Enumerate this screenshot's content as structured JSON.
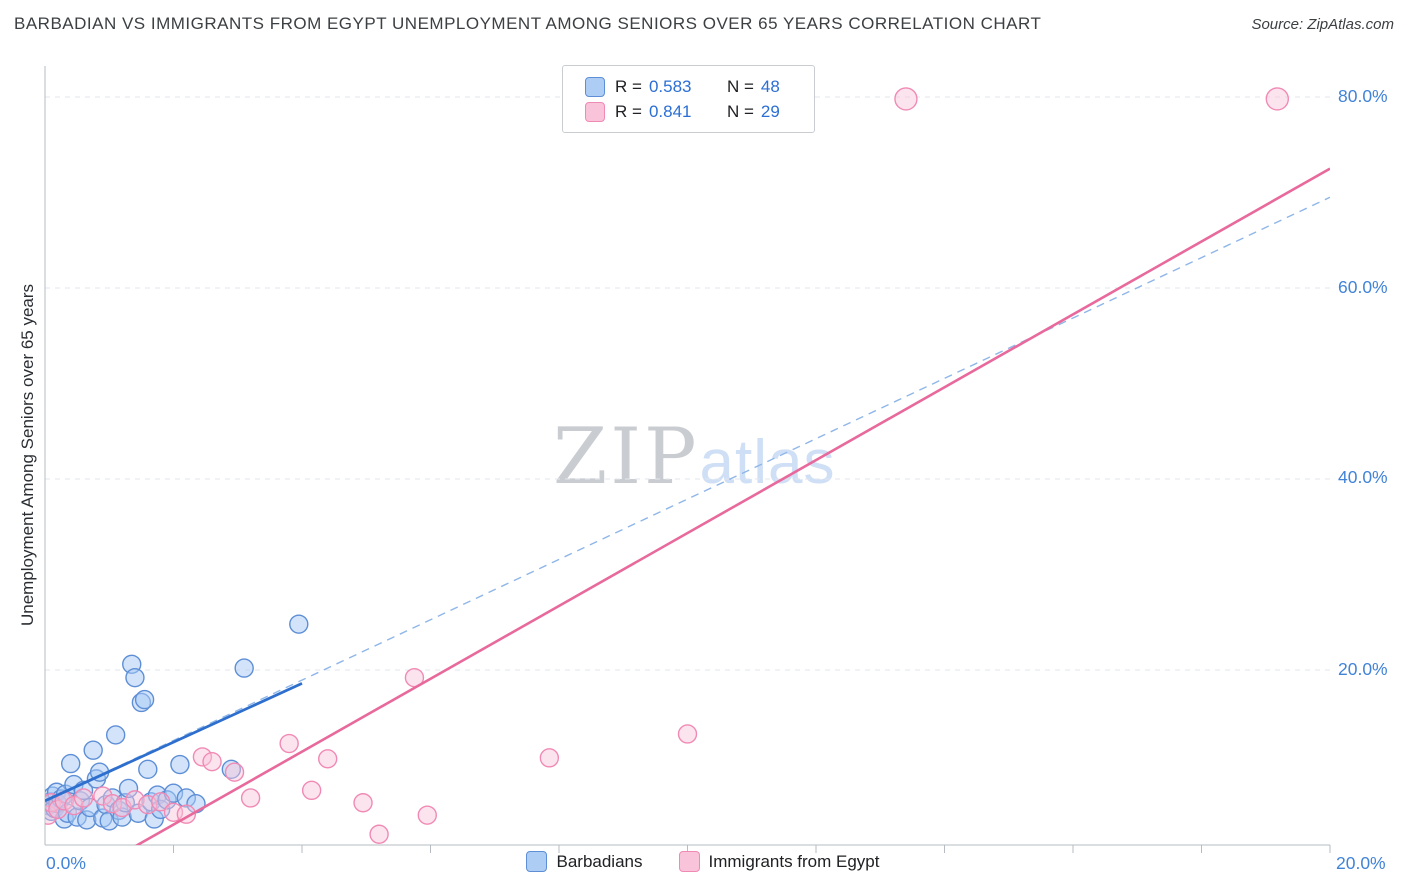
{
  "header": {
    "title": "BARBADIAN VS IMMIGRANTS FROM EGYPT UNEMPLOYMENT AMONG SENIORS OVER 65 YEARS CORRELATION CHART",
    "source": "Source: ZipAtlas.com"
  },
  "axes": {
    "y_label": "Unemployment Among Seniors over 65 years",
    "y_ticks": [
      "80.0%",
      "60.0%",
      "40.0%",
      "20.0%"
    ],
    "x_min_label": "0.0%",
    "x_max_label": "20.0%"
  },
  "legend_box": {
    "rows": [
      {
        "r_label": "R =",
        "r_value": "0.583",
        "n_label": "N =",
        "n_value": "48"
      },
      {
        "r_label": "R =",
        "r_value": "0.841",
        "n_label": "N =",
        "n_value": "29"
      }
    ]
  },
  "bottom_legend": {
    "items": [
      {
        "label": "Barbadians"
      },
      {
        "label": "Immigrants from Egypt"
      }
    ]
  },
  "watermark": {
    "part1": "ZIP",
    "part2": "atlas"
  },
  "colors": {
    "blue_fill": "#aecdf5",
    "blue_stroke": "#5e8fd6",
    "pink_fill": "#f9c3d9",
    "pink_stroke": "#f08ab5",
    "value_text": "#2b6fd4",
    "axis_text": "#4183d7",
    "title_text": "#3c4043"
  },
  "chart_data": {
    "type": "scatter",
    "title": "Barbadian vs Immigrants from Egypt Unemployment Among Seniors over 65 years",
    "xlabel": "",
    "ylabel": "Unemployment Among Seniors over 65 years",
    "xlim": [
      0,
      20
    ],
    "ylim": [
      0,
      82
    ],
    "x_unit": "%",
    "y_unit": "%",
    "grid": true,
    "gridlines_y": [
      20,
      40,
      60,
      80
    ],
    "x_ticks": [
      2,
      4,
      6,
      8,
      10,
      12,
      14,
      16,
      18,
      20
    ],
    "colors": {
      "grid": "#e2e6eb",
      "axis": "#b7bcc2"
    },
    "series": [
      {
        "name": "Barbadians",
        "R": 0.583,
        "N": 48,
        "point_name": "barbadians-point",
        "marker_radius": 9,
        "fill": "rgba(168, 201, 245, 0.50)",
        "stroke": "#5e8fd6",
        "points": [
          [
            0.05,
            5.8
          ],
          [
            0.08,
            6.2
          ],
          [
            0.1,
            5.2
          ],
          [
            0.12,
            6.8
          ],
          [
            0.15,
            5.5
          ],
          [
            0.18,
            7.2
          ],
          [
            0.2,
            6.0
          ],
          [
            0.25,
            6.5
          ],
          [
            0.3,
            4.4
          ],
          [
            0.32,
            7.0
          ],
          [
            0.35,
            5.0
          ],
          [
            0.4,
            10.2
          ],
          [
            0.45,
            8.0
          ],
          [
            0.5,
            4.6
          ],
          [
            0.55,
            6.3
          ],
          [
            0.6,
            7.4
          ],
          [
            0.65,
            4.3
          ],
          [
            0.7,
            5.6
          ],
          [
            0.75,
            11.6
          ],
          [
            0.8,
            8.6
          ],
          [
            0.85,
            9.3
          ],
          [
            0.9,
            4.5
          ],
          [
            0.95,
            5.9
          ],
          [
            1.0,
            4.2
          ],
          [
            1.05,
            6.6
          ],
          [
            1.1,
            13.2
          ],
          [
            1.15,
            5.3
          ],
          [
            1.2,
            4.6
          ],
          [
            1.25,
            6.1
          ],
          [
            1.3,
            7.6
          ],
          [
            1.35,
            20.6
          ],
          [
            1.4,
            19.2
          ],
          [
            1.45,
            5.0
          ],
          [
            1.5,
            16.6
          ],
          [
            1.55,
            16.9
          ],
          [
            1.6,
            9.6
          ],
          [
            1.65,
            6.2
          ],
          [
            1.7,
            4.4
          ],
          [
            1.75,
            6.9
          ],
          [
            1.8,
            5.4
          ],
          [
            1.9,
            6.4
          ],
          [
            2.0,
            7.1
          ],
          [
            2.1,
            10.1
          ],
          [
            2.2,
            6.6
          ],
          [
            2.35,
            6.0
          ],
          [
            2.9,
            9.6
          ],
          [
            3.1,
            20.2
          ],
          [
            3.95,
            24.8
          ]
        ]
      },
      {
        "name": "Immigrants from Egypt",
        "R": 0.841,
        "N": 29,
        "point_name": "egypt-point",
        "marker_radius": 9,
        "fill": "rgba(249, 195, 217, 0.45)",
        "stroke": "#f08ab5",
        "points": [
          [
            0.05,
            4.8
          ],
          [
            0.1,
            6.1
          ],
          [
            0.2,
            5.4
          ],
          [
            0.3,
            6.3
          ],
          [
            0.45,
            5.8
          ],
          [
            0.6,
            6.6
          ],
          [
            0.9,
            6.8
          ],
          [
            1.05,
            6.0
          ],
          [
            1.2,
            5.6
          ],
          [
            1.4,
            6.4
          ],
          [
            1.6,
            5.9
          ],
          [
            1.8,
            6.2
          ],
          [
            2.0,
            5.1
          ],
          [
            2.2,
            4.9
          ],
          [
            2.45,
            10.9
          ],
          [
            2.6,
            10.4
          ],
          [
            2.95,
            9.3
          ],
          [
            3.2,
            6.6
          ],
          [
            3.8,
            12.3
          ],
          [
            4.15,
            7.4
          ],
          [
            4.4,
            10.7
          ],
          [
            4.95,
            6.1
          ],
          [
            5.2,
            2.8
          ],
          [
            5.75,
            19.2
          ],
          [
            5.95,
            4.8
          ],
          [
            7.85,
            10.8
          ],
          [
            10.0,
            13.3
          ],
          [
            13.4,
            79.8,
            11
          ],
          [
            19.18,
            79.8,
            11
          ]
        ]
      }
    ],
    "trend_lines": [
      {
        "name": "barbadians-trend-extension",
        "series": "Barbadians",
        "style": "dashed",
        "x1": 0,
        "y1": 6.3,
        "x2": 20,
        "y2": 69.5,
        "color": "#8fb6e8",
        "width": 1.4
      },
      {
        "name": "barbadians-trend-line",
        "series": "Barbadians",
        "style": "solid",
        "x1": 0,
        "y1": 6.3,
        "x2": 4.0,
        "y2": 18.6,
        "color": "#2e6fce",
        "width": 2.8
      },
      {
        "name": "egypt-trend-line",
        "series": "Immigrants from Egypt",
        "style": "solid",
        "x1": 1.0,
        "y1": 0,
        "x2": 20,
        "y2": 72.5,
        "color": "#e8699c",
        "width": 2.6
      }
    ]
  }
}
